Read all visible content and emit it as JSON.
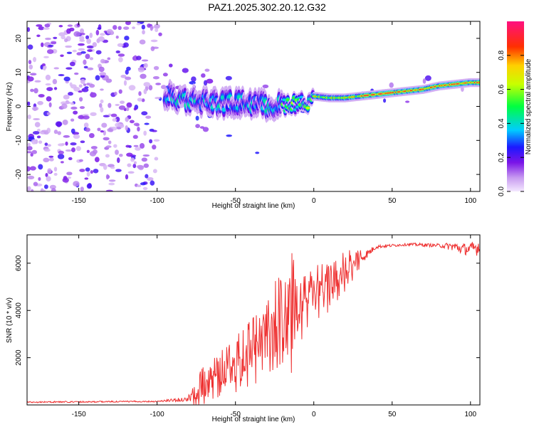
{
  "title": "PAZ1.2025.302.20.12.G32",
  "chart_data": [
    {
      "type": "heatmap",
      "xlabel": "Height of straight line (km)",
      "ylabel": "Frequency (Hz)",
      "xlim": [
        -183,
        106
      ],
      "ylim": [
        -25,
        25
      ],
      "x_ticks": [
        -150,
        -100,
        -50,
        0,
        50,
        100
      ],
      "y_ticks": [
        -20,
        -10,
        0,
        10,
        20
      ],
      "colorbar": {
        "label": "Normalized spectral amplitude",
        "range": [
          0,
          1
        ],
        "ticks": [
          0.0,
          0.2,
          0.4,
          0.6,
          0.8
        ]
      },
      "ridge": {
        "description": "dominant frequency track",
        "x": [
          -95,
          -80,
          -60,
          -40,
          -25,
          -15,
          -5,
          0,
          10,
          20,
          30,
          40,
          50,
          60,
          70,
          80,
          90,
          100,
          106
        ],
        "y": [
          3,
          2,
          1,
          1,
          0,
          1,
          1,
          3,
          2.5,
          2.5,
          3,
          3.5,
          4,
          4.5,
          5,
          6,
          6.5,
          7,
          7
        ]
      }
    },
    {
      "type": "line",
      "xlabel": "Height of straight line (km)",
      "ylabel": "SNR (10 * v/v)",
      "xlim": [
        -183,
        106
      ],
      "ylim": [
        0,
        7200
      ],
      "x_ticks": [
        -150,
        -100,
        -50,
        0,
        50,
        100
      ],
      "y_ticks": [
        2000,
        4000,
        6000
      ],
      "series": [
        {
          "name": "SNR",
          "color": "#ee3030",
          "envelope_x": [
            -183,
            -100,
            -80,
            -75,
            -70,
            -60,
            -50,
            -40,
            -30,
            -20,
            -15,
            -10,
            -5,
            0,
            5,
            10,
            20,
            30,
            40,
            50,
            60,
            80,
            90,
            95,
            100,
            106
          ],
          "envelope_y": [
            120,
            150,
            250,
            500,
            900,
            1300,
            1700,
            2300,
            2900,
            3500,
            3800,
            3800,
            4300,
            4900,
            4800,
            5100,
            5700,
            6200,
            6700,
            6750,
            6800,
            6750,
            6700,
            6600,
            6600,
            6700
          ],
          "spread": [
            60,
            60,
            200,
            900,
            900,
            1000,
            1200,
            1500,
            1800,
            2300,
            2600,
            1500,
            1300,
            1200,
            1400,
            1200,
            900,
            500,
            150,
            120,
            120,
            150,
            400,
            500,
            500,
            800
          ]
        }
      ]
    }
  ]
}
